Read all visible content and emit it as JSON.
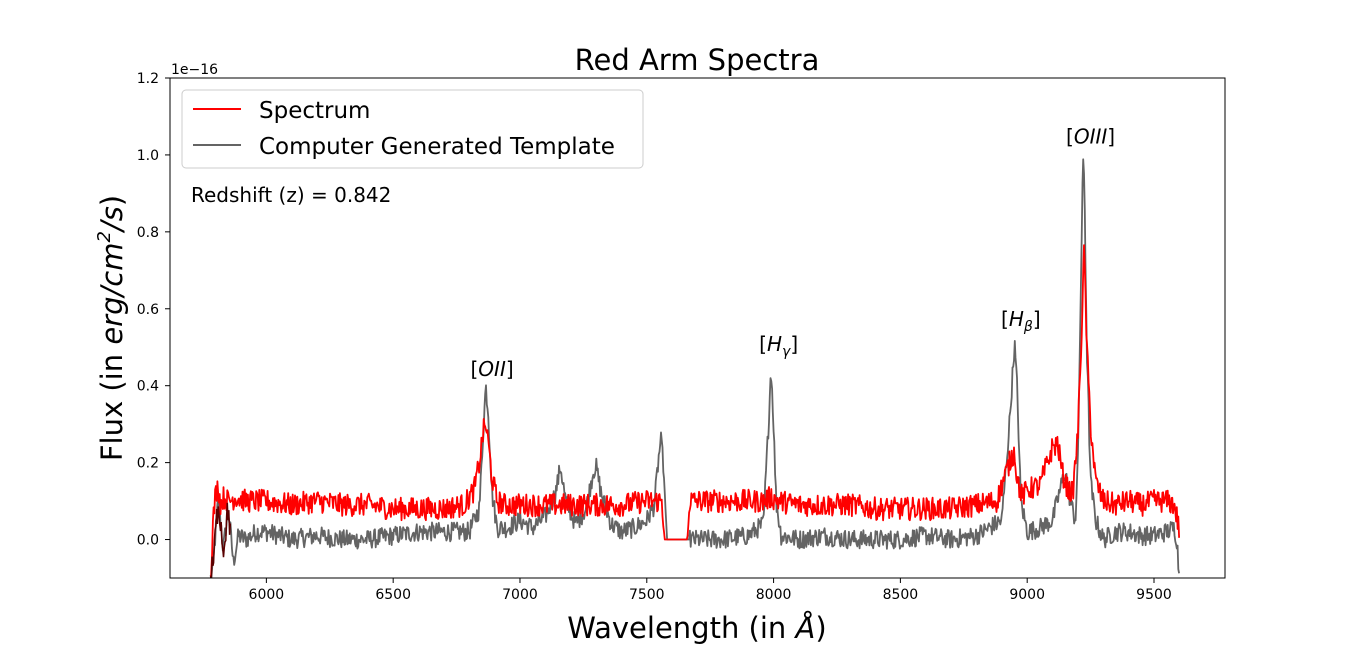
{
  "chart_data": {
    "type": "line",
    "title": "Red Arm Spectra",
    "xlabel_prefix": "Wavelength (in ",
    "xlabel_unit": "Å",
    "xlabel_suffix": ")",
    "ylabel_prefix": "Flux (in ",
    "ylabel_unit": "erg/cm",
    "ylabel_exp": "2",
    "ylabel_unit_end": "/s",
    "ylabel_suffix": ")",
    "y_offset_text": "1e−16",
    "xlim": [
      5620,
      9780
    ],
    "ylim": [
      -0.1,
      1.2
    ],
    "x_ticks": [
      6000,
      6500,
      7000,
      7500,
      8000,
      8500,
      9000,
      9500
    ],
    "x_tick_labels": [
      "6000",
      "6500",
      "7000",
      "7500",
      "8000",
      "8500",
      "9000",
      "9500"
    ],
    "y_ticks": [
      0.0,
      0.2,
      0.4,
      0.6,
      0.8,
      1.0,
      1.2
    ],
    "y_tick_labels": [
      "0.0",
      "0.2",
      "0.4",
      "0.6",
      "0.8",
      "1.0",
      "1.2"
    ],
    "grid": false,
    "legend_position": "top-left",
    "redshift_text": "Redshift (z) = 0.842",
    "series": [
      {
        "name": "Spectrum",
        "color": "#ff0000",
        "x": [
          5780,
          5790,
          5800,
          5810,
          5820,
          5830,
          5850,
          5880,
          5920,
          5960,
          6000,
          6100,
          6200,
          6300,
          6400,
          6500,
          6600,
          6700,
          6780,
          6820,
          6840,
          6855,
          6865,
          6875,
          6890,
          6910,
          6940,
          7000,
          7100,
          7200,
          7300,
          7400,
          7500,
          7560,
          7570,
          7660,
          7670,
          7700,
          7800,
          7900,
          7960,
          7990,
          8020,
          8100,
          8200,
          8300,
          8400,
          8500,
          8600,
          8700,
          8800,
          8880,
          8930,
          8950,
          8960,
          8980,
          9000,
          9050,
          9100,
          9120,
          9140,
          9160,
          9180,
          9200,
          9215,
          9225,
          9235,
          9250,
          9270,
          9300,
          9350,
          9400,
          9450,
          9500,
          9550,
          9580,
          9590,
          9600
        ],
        "y": [
          -0.1,
          0.05,
          0.12,
          0.14,
          0.09,
          0.11,
          0.1,
          0.11,
          0.1,
          0.1,
          0.1,
          0.09,
          0.1,
          0.09,
          0.09,
          0.08,
          0.08,
          0.08,
          0.09,
          0.13,
          0.2,
          0.28,
          0.3,
          0.25,
          0.16,
          0.1,
          0.09,
          0.09,
          0.09,
          0.09,
          0.09,
          0.09,
          0.1,
          0.1,
          0.0,
          0.0,
          0.1,
          0.1,
          0.1,
          0.1,
          0.1,
          0.11,
          0.1,
          0.09,
          0.09,
          0.09,
          0.08,
          0.08,
          0.08,
          0.08,
          0.09,
          0.1,
          0.2,
          0.23,
          0.16,
          0.11,
          0.13,
          0.14,
          0.24,
          0.25,
          0.17,
          0.13,
          0.12,
          0.28,
          0.55,
          0.76,
          0.5,
          0.3,
          0.15,
          0.1,
          0.09,
          0.1,
          0.09,
          0.1,
          0.1,
          0.09,
          0.06,
          0.02
        ]
      },
      {
        "name": "Computer Generated Template",
        "color": "#646464",
        "x": [
          5780,
          5790,
          5800,
          5810,
          5820,
          5830,
          5840,
          5850,
          5870,
          5890,
          5920,
          5960,
          6000,
          6100,
          6200,
          6300,
          6400,
          6500,
          6600,
          6700,
          6800,
          6840,
          6855,
          6865,
          6875,
          6890,
          6910,
          6950,
          7000,
          7050,
          7100,
          7140,
          7160,
          7180,
          7220,
          7260,
          7290,
          7300,
          7320,
          7360,
          7400,
          7450,
          7500,
          7530,
          7545,
          7555,
          7565,
          7580,
          7670,
          7680,
          7700,
          7800,
          7900,
          7960,
          7980,
          7990,
          8000,
          8010,
          8030,
          8100,
          8200,
          8300,
          8400,
          8500,
          8600,
          8700,
          8800,
          8850,
          8900,
          8930,
          8950,
          8960,
          8975,
          9000,
          9050,
          9100,
          9130,
          9150,
          9170,
          9190,
          9200,
          9210,
          9220,
          9225,
          9235,
          9250,
          9270,
          9300,
          9350,
          9400,
          9450,
          9500,
          9550,
          9580,
          9590,
          9600
        ],
        "y": [
          -0.1,
          -0.07,
          0.02,
          0.1,
          0.05,
          -0.03,
          0.03,
          0.08,
          -0.06,
          0.01,
          0.0,
          0.02,
          0.02,
          0.0,
          0.01,
          0.0,
          0.0,
          0.01,
          0.02,
          0.02,
          0.02,
          0.08,
          0.28,
          0.4,
          0.33,
          0.12,
          0.03,
          0.03,
          0.05,
          0.03,
          0.06,
          0.12,
          0.19,
          0.1,
          0.04,
          0.08,
          0.18,
          0.19,
          0.12,
          0.04,
          0.02,
          0.03,
          0.05,
          0.09,
          0.2,
          0.26,
          0.2,
          0.0,
          0.0,
          0.0,
          0.0,
          0.0,
          0.01,
          0.04,
          0.3,
          0.45,
          0.3,
          0.1,
          0.01,
          0.0,
          0.01,
          0.0,
          0.0,
          0.0,
          0.01,
          0.0,
          0.01,
          0.03,
          0.05,
          0.3,
          0.51,
          0.4,
          0.1,
          0.02,
          0.03,
          0.05,
          0.13,
          0.18,
          0.1,
          0.05,
          0.2,
          0.6,
          0.98,
          0.95,
          0.5,
          0.15,
          0.05,
          0.0,
          0.02,
          0.02,
          0.01,
          0.01,
          0.02,
          0.03,
          0.0,
          -0.1
        ]
      }
    ],
    "annotations": [
      {
        "base": "[",
        "main": "OII",
        "sub": "",
        "close": "]",
        "x": 6890,
        "y": 0.425
      },
      {
        "base": "[",
        "main": "H",
        "sub": "γ",
        "close": "]",
        "x": 8020,
        "y": 0.49
      },
      {
        "base": "[",
        "main": "H",
        "sub": "β",
        "close": "]",
        "x": 8975,
        "y": 0.555
      },
      {
        "base": "[",
        "main": "OIII",
        "sub": "",
        "close": "]",
        "x": 9250,
        "y": 1.03
      }
    ]
  }
}
